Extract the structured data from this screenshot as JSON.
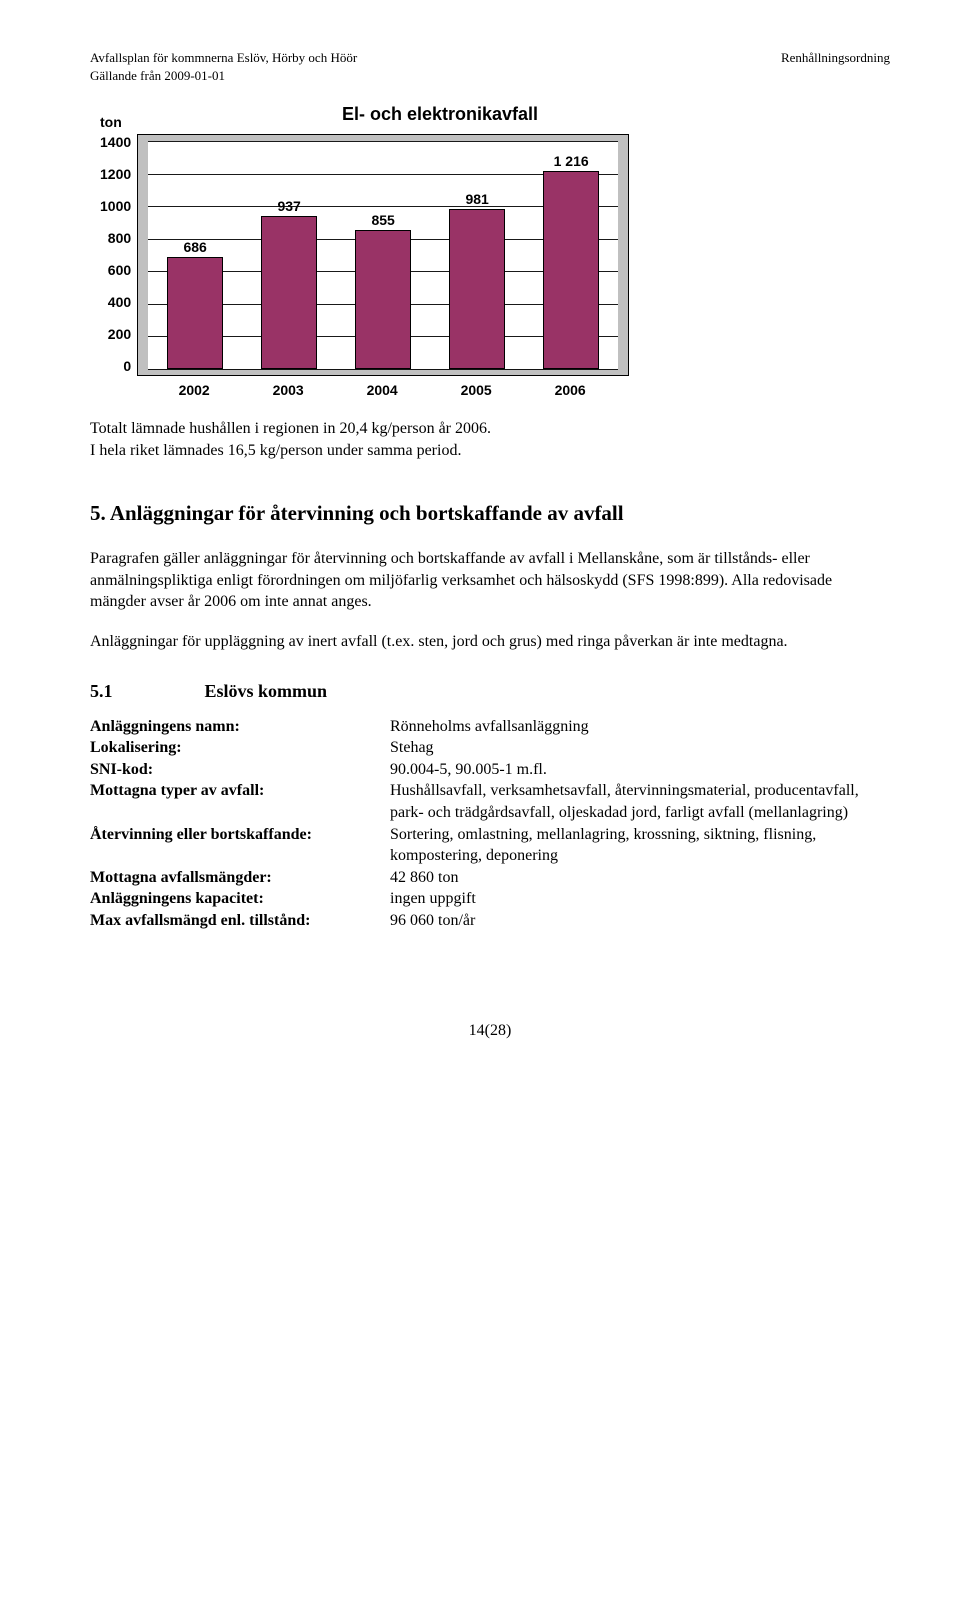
{
  "header": {
    "left_line1": "Avfallsplan  för kommnerna Eslöv, Hörby och Höör",
    "left_line2": "Gällande från 2009-01-01",
    "right": "Renhållningsordning"
  },
  "chart": {
    "type": "bar",
    "title": "El- och elektronikavfall",
    "y_unit": "ton",
    "y_ticks": [
      "1400",
      "1200",
      "1000",
      "800",
      "600",
      "400",
      "200",
      "0"
    ],
    "ylim_max": 1400,
    "categories": [
      "2002",
      "2003",
      "2004",
      "2005",
      "2006"
    ],
    "values": [
      686,
      937,
      855,
      981,
      1216
    ],
    "value_labels": [
      "686",
      "937",
      "855",
      "981",
      "1 216"
    ],
    "bar_color": "#993366",
    "plot_bg": "#c0c0c0",
    "inner_bg": "#ffffff",
    "border_color": "#000000"
  },
  "para_after_chart_1": "Totalt lämnade hushållen i regionen in 20,4 kg/person år 2006.",
  "para_after_chart_2": "I hela riket lämnades 16,5 kg/person under samma period.",
  "section5_title": "5. Anläggningar för återvinning och bortskaffande av avfall",
  "section5_para1": "Paragrafen gäller anläggningar för återvinning och bortskaffande av avfall i Mellanskåne, som är tillstånds- eller anmälningspliktiga enligt förordningen om miljöfarlig verksamhet och hälsoskydd (SFS 1998:899). Alla redovisade mängder avser år 2006 om inte annat anges.",
  "section5_para2": "Anläggningar för uppläggning av inert avfall (t.ex. sten, jord och grus) med ringa påverkan är inte medtagna.",
  "section51_num": "5.1",
  "section51_title": "Eslövs kommun",
  "kv": [
    {
      "k": "Anläggningens namn:",
      "v": "Rönneholms avfallsanläggning"
    },
    {
      "k": "Lokalisering:",
      "v": "Stehag"
    },
    {
      "k": "SNI-kod:",
      "v": "90.004-5, 90.005-1 m.fl."
    },
    {
      "k": "Mottagna typer av avfall:",
      "v": "Hushållsavfall, verksamhetsavfall, återvinningsmaterial,  producentavfall, park- och trädgårdsavfall, oljeskadad jord, farligt avfall (mellanlagring)"
    },
    {
      "k": "Återvinning eller bortskaffande:",
      "v": "Sortering, omlastning, mellanlagring, krossning, siktning, flisning, kompostering, deponering"
    },
    {
      "k": "Mottagna avfallsmängder:",
      "v": "42 860 ton"
    },
    {
      "k": "Anläggningens kapacitet:",
      "v": "ingen uppgift"
    },
    {
      "k": "Max avfallsmängd enl. tillstånd:",
      "v": "96 060 ton/år"
    }
  ],
  "page_number": "14(28)"
}
